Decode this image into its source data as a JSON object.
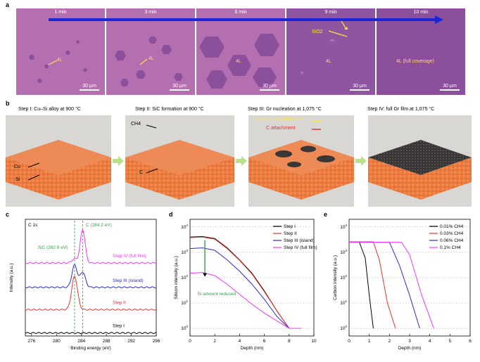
{
  "panel_labels": {
    "a": "a",
    "b": "b",
    "c": "c",
    "d": "d",
    "e": "e"
  },
  "panel_a": {
    "times": [
      "1 min",
      "3 min",
      "6 min",
      "9 min",
      "10 min"
    ],
    "labels_4l": [
      "4L",
      "4L",
      "4L",
      "4L",
      "4L (full coverage)"
    ],
    "sio2_label": "SiO2",
    "scale_bar": "30 μm",
    "colors": {
      "substrate": "#b46fb0",
      "graphene": "#8c4f9b",
      "timeline": "#1a24d8",
      "annotation": "#ffe23a"
    }
  },
  "panel_b": {
    "steps": [
      "Step I: Cu–Si alloy at 900 °C",
      "Step II: SiC formation at 900 °C",
      "Step III: Gr nucleation at 1,075 °C",
      "Step IV: full Gr film at 1,075 °C"
    ],
    "labels": {
      "cu": "Cu",
      "si": "Si",
      "ch4": "CH4",
      "c": "C",
      "sublimation": "Cu and Si sublimation",
      "c_attachment": "C attachment"
    }
  },
  "chart_data": [
    {
      "type": "line",
      "panel": "c",
      "xlabel": "Binding energy (eV)",
      "ylabel": "Intensity (a.u.)",
      "xlim": [
        275,
        296
      ],
      "xticks": [
        276,
        280,
        284,
        288,
        292,
        296
      ],
      "annotations": [
        "C 1s",
        "C (284.2 eV)",
        "SiC (282.9 eV)"
      ],
      "series": [
        {
          "name": "Step IV (full film)",
          "color": "#ff33ff",
          "baseline": 7.2,
          "peaks": [
            [
              284.2,
              3.3,
              0.55
            ],
            [
              282.9,
              0.4,
              0.6
            ]
          ]
        },
        {
          "name": "Step III (island)",
          "color": "#2a2ad8",
          "baseline": 4.8,
          "peaks": [
            [
              282.9,
              2.2,
              0.6
            ],
            [
              284.2,
              1.5,
              0.6
            ]
          ]
        },
        {
          "name": "Step II",
          "color": "#e8342c",
          "baseline": 2.6,
          "peaks": [
            [
              282.9,
              3.3,
              0.65
            ]
          ]
        },
        {
          "name": "Step I",
          "color": "#000000",
          "baseline": 0.3,
          "peaks": []
        }
      ]
    },
    {
      "type": "line",
      "panel": "d",
      "xlabel": "Depth (nm)",
      "ylabel": "Silicon intensity (a.u.)",
      "xlim": [
        0,
        10
      ],
      "ylim": [
        0.5,
        20000
      ],
      "yscale": "log",
      "xticks": [
        0,
        2,
        4,
        6,
        8,
        10
      ],
      "yticks": [
        "10^0",
        "10^1",
        "10^2",
        "10^3",
        "10^4"
      ],
      "annotations": [
        "Si amount reduced"
      ],
      "series": [
        {
          "name": "Step I",
          "color": "#000000",
          "points": [
            [
              0,
              4000
            ],
            [
              1,
              4200
            ],
            [
              2,
              3500
            ],
            [
              3,
              1500
            ],
            [
              4,
              500
            ],
            [
              5,
              150
            ],
            [
              6,
              30
            ],
            [
              7,
              5
            ],
            [
              8,
              1
            ]
          ]
        },
        {
          "name": "Step II",
          "color": "#e8342c",
          "points": [
            [
              0,
              3800
            ],
            [
              1,
              4000
            ],
            [
              2,
              3300
            ],
            [
              3,
              1400
            ],
            [
              4,
              480
            ],
            [
              5,
              140
            ],
            [
              6,
              28
            ],
            [
              7,
              5
            ],
            [
              8,
              1
            ]
          ]
        },
        {
          "name": "Step III (island)",
          "color": "#2a2ad8",
          "points": [
            [
              0,
              1400
            ],
            [
              1,
              1500
            ],
            [
              2,
              1200
            ],
            [
              3,
              500
            ],
            [
              4,
              180
            ],
            [
              5,
              55
            ],
            [
              6,
              14
            ],
            [
              7,
              3
            ],
            [
              8,
              1
            ]
          ]
        },
        {
          "name": "Step IV (full film)",
          "color": "#ff33ff",
          "points": [
            [
              0,
              150
            ],
            [
              1,
              160
            ],
            [
              2,
              120
            ],
            [
              3,
              55
            ],
            [
              4,
              22
            ],
            [
              5,
              9
            ],
            [
              6,
              4
            ],
            [
              7,
              2
            ],
            [
              8,
              1
            ],
            [
              9,
              1
            ]
          ]
        }
      ]
    },
    {
      "type": "line",
      "panel": "e",
      "xlabel": "Depth (nm)",
      "ylabel": "Carbon intensity (a.u.)",
      "xlim": [
        0,
        6
      ],
      "ylim": [
        0.5,
        20000
      ],
      "yscale": "log",
      "xticks": [
        0,
        1,
        2,
        3,
        4,
        5,
        6
      ],
      "yticks": [
        "10^0",
        "10^1",
        "10^2",
        "10^3",
        "10^4"
      ],
      "series": [
        {
          "name": "0.01% CH4",
          "color": "#000000",
          "points": [
            [
              0,
              2600
            ],
            [
              0.5,
              2600
            ],
            [
              0.8,
              600
            ],
            [
              1.0,
              20
            ],
            [
              1.2,
              1
            ]
          ]
        },
        {
          "name": "0.03% CH4",
          "color": "#e8342c",
          "points": [
            [
              0,
              2600
            ],
            [
              1.2,
              2600
            ],
            [
              1.5,
              500
            ],
            [
              1.9,
              10
            ],
            [
              2.3,
              1
            ]
          ]
        },
        {
          "name": "0.06% CH4",
          "color": "#2a2ad8",
          "points": [
            [
              0,
              2500
            ],
            [
              2.0,
              2500
            ],
            [
              2.5,
              300
            ],
            [
              3.0,
              20
            ],
            [
              3.5,
              1
            ]
          ]
        },
        {
          "name": "0.1% CH4",
          "color": "#ff33ff",
          "points": [
            [
              0,
              2500
            ],
            [
              2.6,
              2500
            ],
            [
              3.0,
              800
            ],
            [
              3.6,
              20
            ],
            [
              4.2,
              1
            ]
          ]
        }
      ]
    }
  ]
}
